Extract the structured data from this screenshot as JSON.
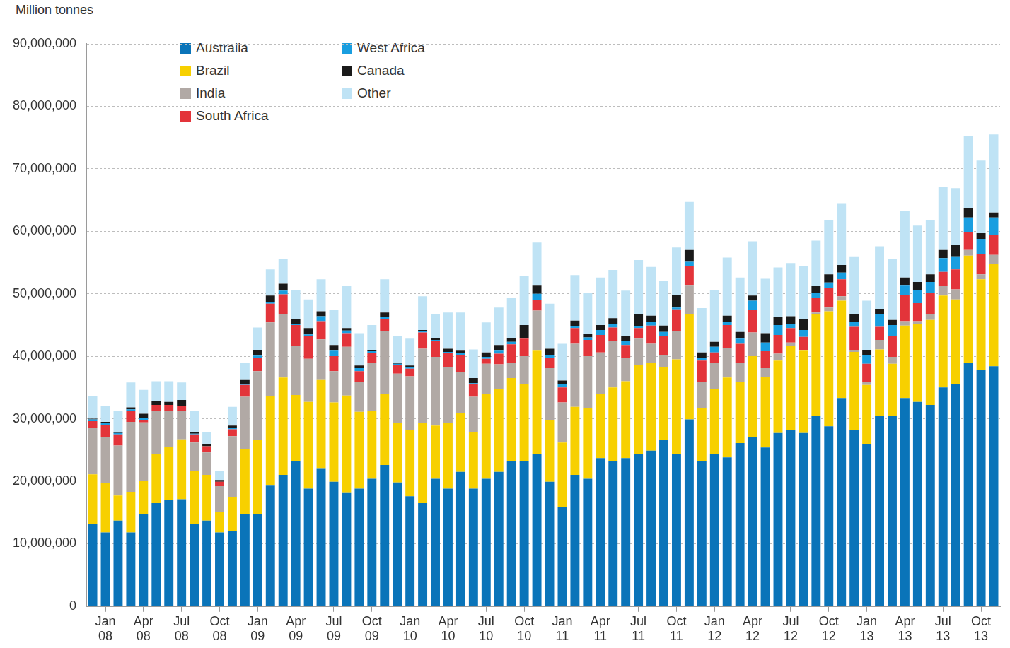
{
  "chart_data": {
    "type": "bar",
    "y_label": "Million tonnes",
    "stacked": true,
    "grid": true,
    "legend": "upper left",
    "categories": [
      null,
      "Jan 08",
      null,
      null,
      "Apr 08",
      null,
      null,
      "Jul 08",
      null,
      null,
      "Oct 08",
      null,
      null,
      "Jan 09",
      null,
      null,
      "Apr 09",
      null,
      null,
      "Jul 09",
      null,
      null,
      "Oct 09",
      null,
      null,
      "Jan 10",
      null,
      null,
      "Apr 10",
      null,
      null,
      "Jul 10",
      null,
      null,
      "Oct 10",
      null,
      null,
      "Jan 11",
      null,
      null,
      "Apr 11",
      null,
      null,
      "Jul 11",
      null,
      null,
      "Oct 11",
      null,
      null,
      "Jan 12",
      null,
      null,
      "Apr 12",
      null,
      null,
      "Jul 12",
      null,
      null,
      "Oct 12",
      null,
      null,
      "Jan 13",
      null,
      null,
      "Apr 13",
      null,
      null,
      "Jul 13",
      null,
      null,
      "Oct 13",
      null
    ],
    "ylim": [
      0,
      90000000
    ],
    "yticks": [
      {
        "value": 0,
        "label": "0"
      },
      {
        "value": 10000000,
        "label": "10,000,000"
      },
      {
        "value": 20000000,
        "label": "20,000,000"
      },
      {
        "value": 30000000,
        "label": "30,000,000"
      },
      {
        "value": 40000000,
        "label": "40,000,000"
      },
      {
        "value": 50000000,
        "label": "50,000,000"
      },
      {
        "value": 60000000,
        "label": "60,000,000"
      },
      {
        "value": 70000000,
        "label": "70,000,000"
      },
      {
        "value": 80000000,
        "label": "80,000,000"
      },
      {
        "value": 90000000,
        "label": "90,000,000"
      }
    ],
    "series": [
      {
        "name": "Australia",
        "color": "#0a74b9",
        "values": [
          13200000,
          11800000,
          13700000,
          11800000,
          14800000,
          16500000,
          17000000,
          17100000,
          13100000,
          13700000,
          11800000,
          12000000,
          14800000,
          14800000,
          19300000,
          21000000,
          23200000,
          18800000,
          22100000,
          19900000,
          18200000,
          18800000,
          20400000,
          22600000,
          19800000,
          17600000,
          16500000,
          20400000,
          18800000,
          21500000,
          18800000,
          20400000,
          21500000,
          23200000,
          23200000,
          24300000,
          19900000,
          15900000,
          21000000,
          20400000,
          23700000,
          23200000,
          23700000,
          24300000,
          24900000,
          26600000,
          24300000,
          29900000,
          23200000,
          24300000,
          23800000,
          26100000,
          27100000,
          25400000,
          27700000,
          28200000,
          27700000,
          30400000,
          28800000,
          33300000,
          28200000,
          25900000,
          30500000,
          30500000,
          33300000,
          32700000,
          32200000,
          35000000,
          35500000,
          38900000,
          37800000,
          38400000
        ]
      },
      {
        "name": "Brazil",
        "color": "#f7d000",
        "values": [
          7900000,
          7900000,
          4000000,
          6500000,
          5200000,
          7900000,
          8500000,
          9600000,
          8500000,
          7300000,
          3300000,
          5400000,
          10300000,
          11800000,
          14300000,
          15600000,
          10600000,
          13900000,
          14100000,
          12700000,
          15500000,
          12300000,
          10800000,
          11300000,
          9500000,
          10600000,
          12800000,
          8500000,
          10500000,
          9400000,
          9100000,
          13600000,
          13200000,
          13300000,
          12400000,
          16600000,
          9900000,
          10300000,
          10900000,
          11300000,
          10300000,
          11800000,
          12300000,
          14300000,
          14000000,
          11700000,
          15200000,
          16800000,
          8500000,
          10400000,
          12800000,
          9800000,
          12900000,
          11300000,
          11600000,
          13400000,
          13200000,
          16300000,
          18400000,
          15600000,
          12500000,
          9500000,
          10600000,
          8300000,
          11600000,
          12400000,
          13600000,
          14700000,
          13600000,
          17200000,
          14500000,
          16400000
        ]
      },
      {
        "name": "India",
        "color": "#b1a9a5",
        "values": [
          7400000,
          7400000,
          8000000,
          11200000,
          9400000,
          6900000,
          5800000,
          4500000,
          4600000,
          3600000,
          4100000,
          9800000,
          8400000,
          11000000,
          11800000,
          10100000,
          7900000,
          6900000,
          6500000,
          5000000,
          7800000,
          4800000,
          7700000,
          10100000,
          7900000,
          8600000,
          11900000,
          11000000,
          8900000,
          6500000,
          5600000,
          4800000,
          4000000,
          2400000,
          4400000,
          6400000,
          8300000,
          6400000,
          10100000,
          8300000,
          6600000,
          7400000,
          3700000,
          4200000,
          3100000,
          1900000,
          4500000,
          4600000,
          4200000,
          4300000,
          4700000,
          3100000,
          3800000,
          1400000,
          1100000,
          600000,
          100000,
          300000,
          600000,
          700000,
          300000,
          500000,
          1500000,
          1100000,
          700000,
          500000,
          900000,
          1500000,
          1600000,
          900000,
          800000,
          1400000
        ]
      },
      {
        "name": "South Africa",
        "color": "#e3343a",
        "values": [
          1100000,
          1900000,
          1800000,
          1700000,
          400000,
          900000,
          900000,
          800000,
          1300000,
          1000000,
          700000,
          1100000,
          1900000,
          2100000,
          3000000,
          3200000,
          3300000,
          3600000,
          2900000,
          2400000,
          2200000,
          1700000,
          1600000,
          1900000,
          1400000,
          1200000,
          2600000,
          2500000,
          2300000,
          2800000,
          2000000,
          800000,
          1700000,
          3000000,
          2800000,
          1700000,
          1600000,
          2400000,
          2500000,
          2600000,
          2800000,
          2200000,
          2100000,
          1700000,
          2900000,
          3000000,
          3500000,
          3200000,
          3400000,
          1600000,
          3700000,
          3000000,
          3600000,
          2700000,
          3000000,
          2300000,
          2100000,
          2400000,
          3100000,
          2700000,
          3700000,
          2900000,
          2100000,
          3400000,
          4200000,
          2900000,
          3400000,
          2300000,
          3200000,
          2900000,
          3200000,
          3200000
        ]
      },
      {
        "name": "West Africa",
        "color": "#199ee0",
        "values": [
          300000,
          300000,
          200000,
          300000,
          300000,
          0,
          0,
          0,
          100000,
          0,
          0,
          200000,
          200000,
          400000,
          200000,
          600000,
          200000,
          300000,
          800000,
          900000,
          400000,
          500000,
          300000,
          400000,
          200000,
          300000,
          200000,
          200000,
          200000,
          300000,
          200000,
          300000,
          500000,
          400000,
          0,
          1000000,
          500000,
          500000,
          300000,
          400000,
          800000,
          600000,
          700000,
          300000,
          600000,
          700000,
          300000,
          600000,
          500000,
          900000,
          500000,
          800000,
          1500000,
          1400000,
          1600000,
          600000,
          1100000,
          700000,
          900000,
          1100000,
          800000,
          1400000,
          2100000,
          1700000,
          1500000,
          2100000,
          1800000,
          2200000,
          2100000,
          2300000,
          2500000,
          2800000
        ]
      },
      {
        "name": "Canada",
        "color": "#1a1a1a",
        "values": [
          100000,
          200000,
          200000,
          300000,
          700000,
          600000,
          500000,
          1000000,
          300000,
          400000,
          300000,
          400000,
          600000,
          900000,
          1100000,
          1100000,
          800000,
          1000000,
          800000,
          900000,
          400000,
          400000,
          200000,
          700000,
          200000,
          200000,
          200000,
          300000,
          500000,
          400000,
          800000,
          700000,
          900000,
          600000,
          2200000,
          1300000,
          1000000,
          600000,
          900000,
          600000,
          800000,
          900000,
          800000,
          1900000,
          1000000,
          1000000,
          2000000,
          1900000,
          800000,
          800000,
          1000000,
          1100000,
          800000,
          1500000,
          1300000,
          1300000,
          1800000,
          1100000,
          1300000,
          1200000,
          1300000,
          800000,
          800000,
          800000,
          1300000,
          1300000,
          1200000,
          1300000,
          1800000,
          1500000,
          900000,
          800000
        ]
      },
      {
        "name": "Other",
        "color": "#bfe3f5",
        "values": [
          3600000,
          2600000,
          3300000,
          4000000,
          3800000,
          3200000,
          3300000,
          2800000,
          3300000,
          1800000,
          1400000,
          3000000,
          2800000,
          3600000,
          4200000,
          4000000,
          4600000,
          4600000,
          5100000,
          5600000,
          6700000,
          5200000,
          4000000,
          5300000,
          4200000,
          4300000,
          5400000,
          3800000,
          5800000,
          6100000,
          4600000,
          4800000,
          6000000,
          6500000,
          7900000,
          6900000,
          7200000,
          5900000,
          7300000,
          6600000,
          7600000,
          7700000,
          7200000,
          8700000,
          7800000,
          7100000,
          7600000,
          7700000,
          7100000,
          8300000,
          9300000,
          8700000,
          8700000,
          8700000,
          7900000,
          8500000,
          8400000,
          7300000,
          8700000,
          9900000,
          9200000,
          7900000,
          10000000,
          9800000,
          10700000,
          9000000,
          8700000,
          10100000,
          9100000,
          11500000,
          11600000,
          12500000
        ]
      }
    ]
  }
}
